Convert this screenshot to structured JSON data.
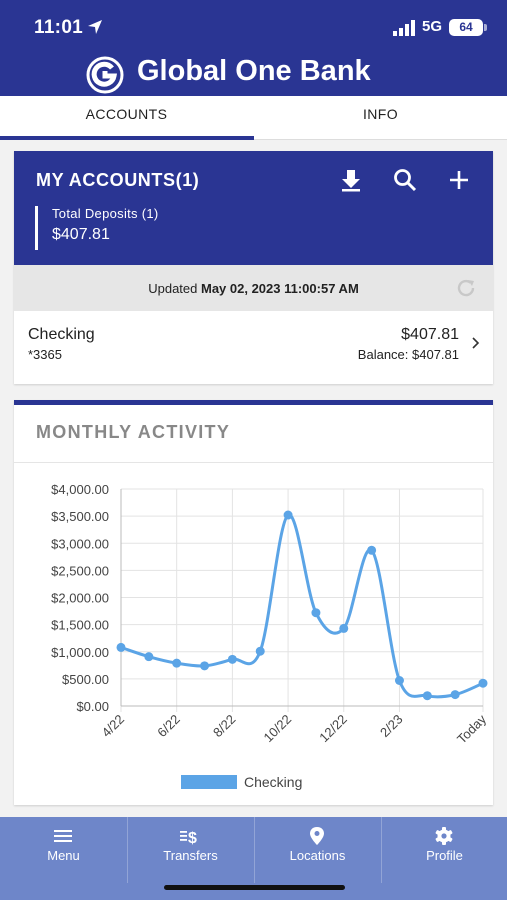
{
  "status": {
    "time": "11:01",
    "network": "5G",
    "battery": "64"
  },
  "header": {
    "title": "Global One Bank"
  },
  "tabs": [
    {
      "label": "ACCOUNTS",
      "active": true
    },
    {
      "label": "INFO",
      "active": false
    }
  ],
  "accounts": {
    "title": "MY ACCOUNTS(1)",
    "actions": [
      "download-icon",
      "search-icon",
      "plus-icon"
    ],
    "total_label": "Total Deposits (1)",
    "total_value": "$407.81",
    "updated_prefix": "Updated ",
    "updated_time": "May 02, 2023 11:00:57 AM",
    "items": [
      {
        "name": "Checking",
        "number": "*3365",
        "amount": "$407.81",
        "balance": "Balance: $407.81"
      }
    ]
  },
  "activity": {
    "title": "MONTHLY ACTIVITY"
  },
  "chart_data": {
    "type": "line",
    "x": [
      "4/22",
      "5/22",
      "6/22",
      "7/22",
      "8/22",
      "9/22",
      "10/22",
      "11/22",
      "12/22",
      "1/23",
      "2/23",
      "3/23",
      "4/23",
      "Today"
    ],
    "tick_labels": [
      "4/22",
      "6/22",
      "8/22",
      "10/22",
      "12/22",
      "2/23",
      "Today"
    ],
    "series": [
      {
        "name": "Checking",
        "values": [
          1080,
          910,
          790,
          740,
          860,
          1010,
          3520,
          1720,
          1430,
          2870,
          470,
          190,
          210,
          420
        ]
      }
    ],
    "ylim": [
      0,
      4000
    ],
    "yticks": [
      "$0.00",
      "$500.00",
      "$1,000.00",
      "$1,500.00",
      "$2,000.00",
      "$2,500.00",
      "$3,000.00",
      "$3,500.00",
      "$4,000.00"
    ],
    "grid": true,
    "legend": "bottom",
    "color": "#5ba4e6"
  },
  "nav": [
    {
      "label": "Menu",
      "icon": "menu-icon"
    },
    {
      "label": "Transfers",
      "icon": "transfer-icon"
    },
    {
      "label": "Locations",
      "icon": "location-pin-icon"
    },
    {
      "label": "Profile",
      "icon": "gear-icon"
    }
  ]
}
